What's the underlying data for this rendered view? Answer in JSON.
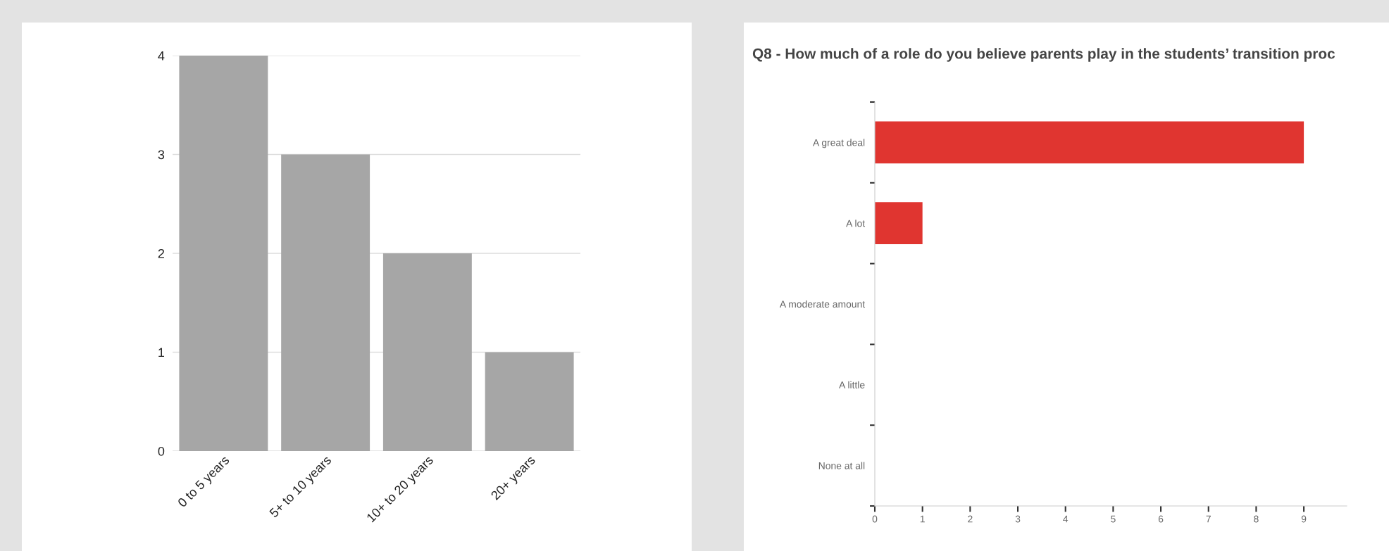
{
  "chart_data": [
    {
      "type": "bar",
      "categories": [
        "0 to 5 years",
        "5+ to 10 years",
        "10+ to 20 years",
        "20+ years"
      ],
      "values": [
        4,
        3,
        2,
        1
      ],
      "color": "#a6a6a6",
      "ylim": [
        0,
        4
      ],
      "yticks": [
        0,
        1,
        2,
        3,
        4
      ],
      "grid": "y"
    },
    {
      "type": "bar",
      "orientation": "horizontal",
      "title": "Q8 - How much of a role do you believe parents play in the students’ transition proc",
      "categories": [
        "A great deal",
        "A lot",
        "A moderate amount",
        "A little",
        "None at all"
      ],
      "values": [
        9,
        1,
        0,
        0,
        0
      ],
      "color": "#e03530",
      "xlim": [
        0,
        9.9
      ],
      "xticks": [
        0,
        1,
        2,
        3,
        4,
        5,
        6,
        7,
        8,
        9
      ],
      "grid": false
    }
  ]
}
